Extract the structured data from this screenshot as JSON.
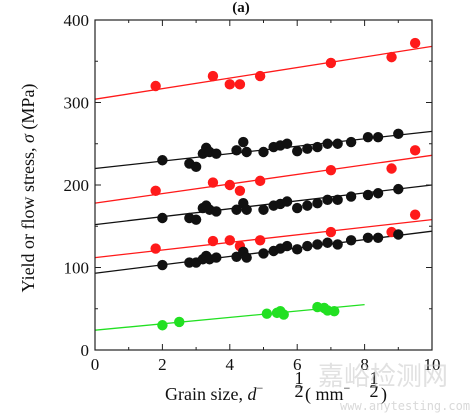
{
  "chart_data": {
    "type": "scatter",
    "panel_label": "(a)",
    "xlabel_text": "Grain size, ",
    "xlabel_symbol": "d",
    "xlabel_exponent_sign": "−",
    "xlabel_exponent_num": "1",
    "xlabel_exponent_den": "2",
    "xlabel_unit_open": " ( mm",
    "xlabel_unit_exponent": "−",
    "xlabel_unit_exponent_num": "1",
    "xlabel_unit_exponent_den": "2",
    "xlabel_unit_close": ")",
    "ylabel_text": "Yield or flow stress, ",
    "ylabel_symbol": "σ",
    "ylabel_unit": " (MPa)",
    "xlim": [
      0,
      10
    ],
    "ylim": [
      0,
      400
    ],
    "xticks": [
      0,
      2,
      4,
      6,
      8,
      10
    ],
    "yticks": [
      0,
      100,
      200,
      300,
      400
    ],
    "series": [
      {
        "color": "#ff1a1a",
        "points": [
          [
            1.8,
            320
          ],
          [
            3.5,
            332
          ],
          [
            4.0,
            322
          ],
          [
            4.3,
            322
          ],
          [
            4.9,
            332
          ],
          [
            7.0,
            348
          ],
          [
            8.8,
            355
          ],
          [
            9.5,
            372
          ]
        ],
        "fit": [
          [
            0,
            304
          ],
          [
            10,
            368
          ]
        ]
      },
      {
        "color": "#111111",
        "points": [
          [
            2.0,
            230
          ],
          [
            2.8,
            226
          ],
          [
            3.0,
            222
          ],
          [
            3.2,
            238
          ],
          [
            3.3,
            245
          ],
          [
            3.4,
            240
          ],
          [
            3.6,
            238
          ],
          [
            4.2,
            242
          ],
          [
            4.4,
            252
          ],
          [
            4.5,
            240
          ],
          [
            5.0,
            240
          ],
          [
            5.3,
            246
          ],
          [
            5.5,
            248
          ],
          [
            5.7,
            250
          ],
          [
            6.0,
            241
          ],
          [
            6.3,
            244
          ],
          [
            6.6,
            246
          ],
          [
            6.9,
            250
          ],
          [
            7.2,
            250
          ],
          [
            7.6,
            252
          ],
          [
            8.1,
            258
          ],
          [
            8.4,
            258
          ],
          [
            9.0,
            262
          ]
        ],
        "fit": [
          [
            0,
            220
          ],
          [
            10,
            265
          ]
        ]
      },
      {
        "color": "#ff1a1a",
        "points": [
          [
            1.8,
            193
          ],
          [
            3.5,
            203
          ],
          [
            4.0,
            200
          ],
          [
            4.3,
            193
          ],
          [
            4.9,
            205
          ],
          [
            7.0,
            218
          ],
          [
            8.8,
            220
          ],
          [
            9.5,
            242
          ]
        ],
        "fit": [
          [
            0,
            178
          ],
          [
            10,
            236
          ]
        ]
      },
      {
        "color": "#111111",
        "points": [
          [
            2.0,
            160
          ],
          [
            2.8,
            160
          ],
          [
            3.0,
            158
          ],
          [
            3.2,
            172
          ],
          [
            3.3,
            175
          ],
          [
            3.4,
            170
          ],
          [
            3.6,
            168
          ],
          [
            4.2,
            170
          ],
          [
            4.4,
            178
          ],
          [
            4.5,
            170
          ],
          [
            5.0,
            170
          ],
          [
            5.3,
            175
          ],
          [
            5.5,
            177
          ],
          [
            5.7,
            180
          ],
          [
            6.0,
            172
          ],
          [
            6.3,
            175
          ],
          [
            6.6,
            178
          ],
          [
            6.9,
            182
          ],
          [
            7.2,
            182
          ],
          [
            7.6,
            186
          ],
          [
            8.1,
            188
          ],
          [
            8.4,
            190
          ],
          [
            9.0,
            195
          ]
        ],
        "fit": [
          [
            0,
            152
          ],
          [
            10,
            200
          ]
        ]
      },
      {
        "color": "#ff1a1a",
        "points": [
          [
            1.8,
            123
          ],
          [
            3.5,
            132
          ],
          [
            4.0,
            133
          ],
          [
            4.3,
            126
          ],
          [
            4.9,
            133
          ],
          [
            7.0,
            143
          ],
          [
            8.8,
            143
          ],
          [
            9.5,
            164
          ]
        ],
        "fit": [
          [
            0,
            112
          ],
          [
            10,
            158
          ]
        ]
      },
      {
        "color": "#111111",
        "points": [
          [
            2.0,
            103
          ],
          [
            2.8,
            106
          ],
          [
            3.0,
            106
          ],
          [
            3.2,
            110
          ],
          [
            3.3,
            114
          ],
          [
            3.4,
            110
          ],
          [
            3.6,
            112
          ],
          [
            4.2,
            113
          ],
          [
            4.4,
            119
          ],
          [
            4.5,
            112
          ],
          [
            5.0,
            117
          ],
          [
            5.3,
            120
          ],
          [
            5.5,
            123
          ],
          [
            5.7,
            126
          ],
          [
            6.0,
            122
          ],
          [
            6.3,
            126
          ],
          [
            6.6,
            128
          ],
          [
            6.9,
            130
          ],
          [
            7.2,
            128
          ],
          [
            7.6,
            133
          ],
          [
            8.1,
            136
          ],
          [
            8.4,
            136
          ],
          [
            9.0,
            140
          ]
        ],
        "fit": [
          [
            0,
            93
          ],
          [
            10,
            144
          ]
        ]
      },
      {
        "color": "#22e022",
        "points": [
          [
            2.0,
            30
          ],
          [
            2.5,
            34
          ],
          [
            5.1,
            44
          ],
          [
            5.4,
            45
          ],
          [
            5.5,
            47
          ],
          [
            5.6,
            43
          ],
          [
            6.6,
            52
          ],
          [
            6.8,
            51
          ],
          [
            6.9,
            48
          ],
          [
            7.1,
            47
          ]
        ],
        "fit": [
          [
            0,
            24
          ],
          [
            8,
            55
          ]
        ]
      }
    ]
  },
  "watermark": {
    "main": "嘉峪检测网",
    "sub": "www.anytesting.com"
  }
}
